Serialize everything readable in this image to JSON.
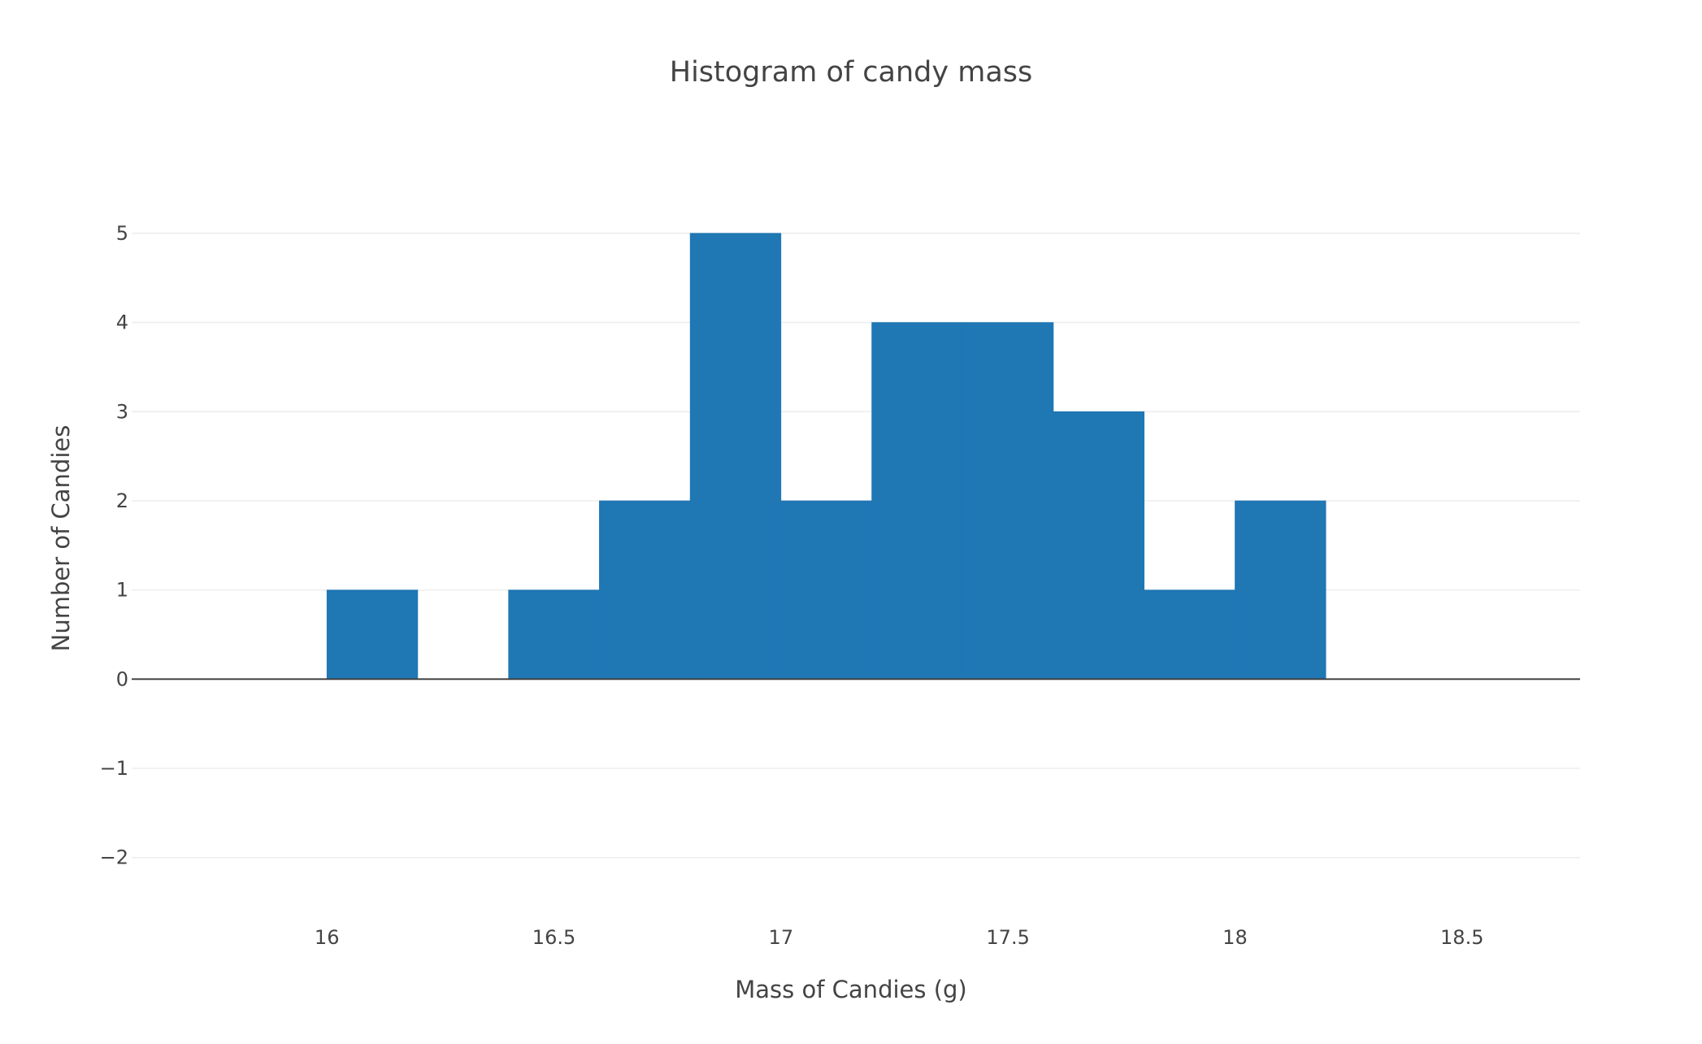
{
  "chart_data": {
    "type": "bar",
    "title": "Histogram of candy mass",
    "xlabel": "Mass of Candies (g)",
    "ylabel": "Number of Candies",
    "bin_width": 0.2,
    "bins": [
      {
        "start": 16.0,
        "end": 16.2,
        "count": 1
      },
      {
        "start": 16.2,
        "end": 16.4,
        "count": 0
      },
      {
        "start": 16.4,
        "end": 16.6,
        "count": 1
      },
      {
        "start": 16.6,
        "end": 16.8,
        "count": 2
      },
      {
        "start": 16.8,
        "end": 17.0,
        "count": 5
      },
      {
        "start": 17.0,
        "end": 17.2,
        "count": 2
      },
      {
        "start": 17.2,
        "end": 17.4,
        "count": 4
      },
      {
        "start": 17.4,
        "end": 17.6,
        "count": 4
      },
      {
        "start": 17.6,
        "end": 17.8,
        "count": 3
      },
      {
        "start": 17.8,
        "end": 18.0,
        "count": 1
      },
      {
        "start": 18.0,
        "end": 18.2,
        "count": 2
      }
    ],
    "xlim": [
      15.57,
      18.76
    ],
    "ylim": [
      -2.55,
      5.3
    ],
    "x_ticks": [
      16,
      16.5,
      17,
      17.5,
      18,
      18.5
    ],
    "x_tick_labels": [
      "16",
      "16.5",
      "17",
      "17.5",
      "18",
      "18.5"
    ],
    "y_ticks": [
      -2,
      -1,
      0,
      1,
      2,
      3,
      4,
      5
    ],
    "y_tick_labels": [
      "−2",
      "−1",
      "0",
      "1",
      "2",
      "3",
      "4",
      "5"
    ],
    "grid": true,
    "legend": "none",
    "colors": {
      "bar": "#1f77b4",
      "grid": "#eeeeee",
      "zero_line": "#444444",
      "text": "#444444"
    }
  }
}
